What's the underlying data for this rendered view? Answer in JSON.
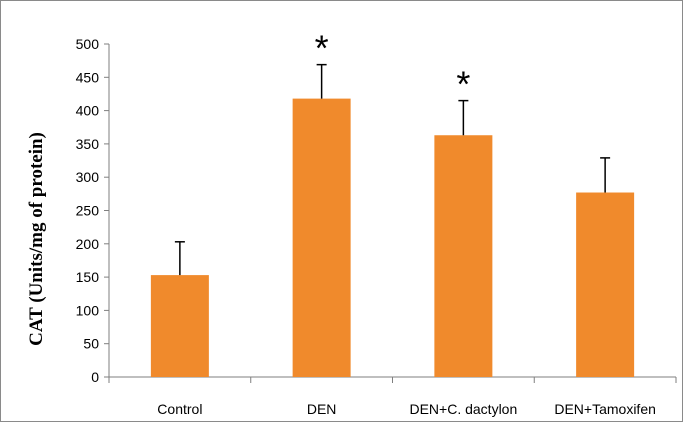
{
  "chart_data": {
    "type": "bar",
    "title": "",
    "xlabel": "",
    "ylabel": "CAT (Units/mg of protein)",
    "ylim": [
      0,
      500
    ],
    "yticks": [
      0,
      50,
      100,
      150,
      200,
      250,
      300,
      350,
      400,
      450,
      500
    ],
    "categories": [
      "Control",
      "DEN",
      "DEN+C. dactylon",
      "DEN+Tamoxifen"
    ],
    "values": [
      153,
      418,
      363,
      277
    ],
    "error_plus": [
      50,
      51,
      52,
      52
    ],
    "annotations": [
      "",
      "*",
      "*",
      ""
    ],
    "bar_color": "#f08a2c",
    "grid": false,
    "legend": "none"
  }
}
